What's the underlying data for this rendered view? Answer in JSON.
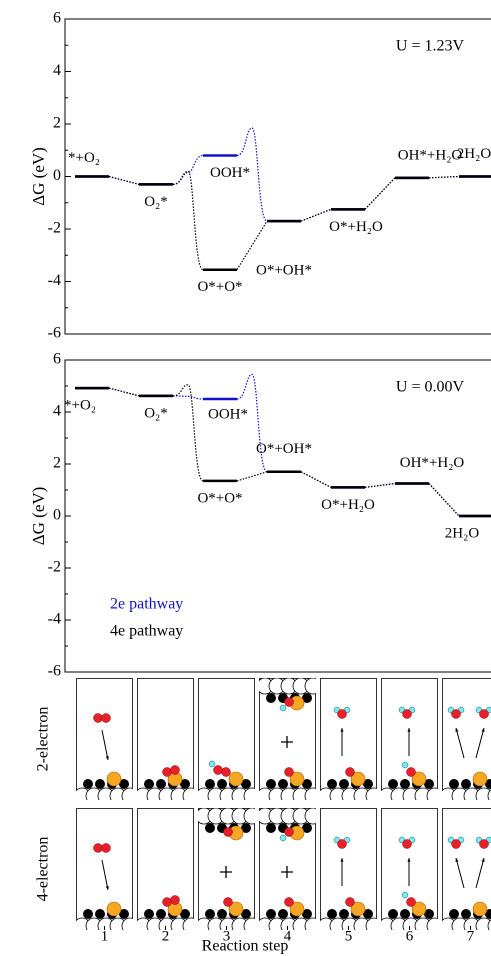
{
  "chart_data": [
    {
      "type": "energy_diagram",
      "annotation": "U = 1.23V",
      "ylabel": "ΔG (eV)",
      "ylim": [
        -6,
        6
      ],
      "yticks": [
        -6,
        -4,
        -2,
        0,
        2,
        4,
        6
      ],
      "legend": false,
      "series": [
        {
          "name": "2e pathway",
          "color": "#1010d0",
          "values": [
            0,
            -0.3,
            0.8,
            -1.7,
            -1.25,
            -0.05,
            0
          ],
          "transition_states": [
            null,
            0.15,
            1.85,
            null,
            null,
            null
          ],
          "labels": [
            "*+O₂",
            "O₂*",
            "OOH*",
            "O*+OH*",
            "O*+H₂O",
            "OH*+H₂O",
            "2H₂O"
          ]
        },
        {
          "name": "4e pathway",
          "color": "#000000",
          "values": [
            0,
            -0.3,
            -3.55,
            -1.7,
            -1.25,
            -0.05,
            0
          ],
          "transition_states": [
            null,
            0.2,
            null,
            null,
            null,
            null
          ],
          "labels": [
            null,
            null,
            "O*+O*",
            null,
            null,
            null,
            null
          ]
        }
      ]
    },
    {
      "type": "energy_diagram",
      "annotation": "U = 0.00V",
      "ylabel": "ΔG (eV)",
      "ylim": [
        -6,
        6
      ],
      "yticks": [
        -6,
        -4,
        -2,
        0,
        2,
        4,
        6
      ],
      "legend": true,
      "series": [
        {
          "name": "2e pathway",
          "color": "#1010d0",
          "values": [
            4.92,
            4.62,
            4.5,
            1.7,
            1.1,
            1.25,
            0
          ],
          "transition_states": [
            null,
            4.6,
            5.45,
            null,
            null,
            null
          ],
          "labels": [
            "*+O₂",
            "O₂*",
            "OOH*",
            "O*+OH*",
            "O*+H₂O",
            "OH*+H₂O",
            "2H₂O"
          ]
        },
        {
          "name": "4e pathway",
          "color": "#000000",
          "values": [
            4.92,
            4.62,
            1.35,
            1.7,
            1.1,
            1.25,
            0
          ],
          "transition_states": [
            null,
            5.05,
            null,
            null,
            null,
            null
          ],
          "labels": [
            null,
            null,
            "O*+O*",
            null,
            null,
            null,
            null
          ]
        }
      ]
    }
  ],
  "schematic": {
    "row_labels": [
      "2-electron",
      "4-electron"
    ],
    "steps": [
      1,
      2,
      3,
      4,
      5,
      6,
      7
    ],
    "xlabel": "Reaction step"
  }
}
